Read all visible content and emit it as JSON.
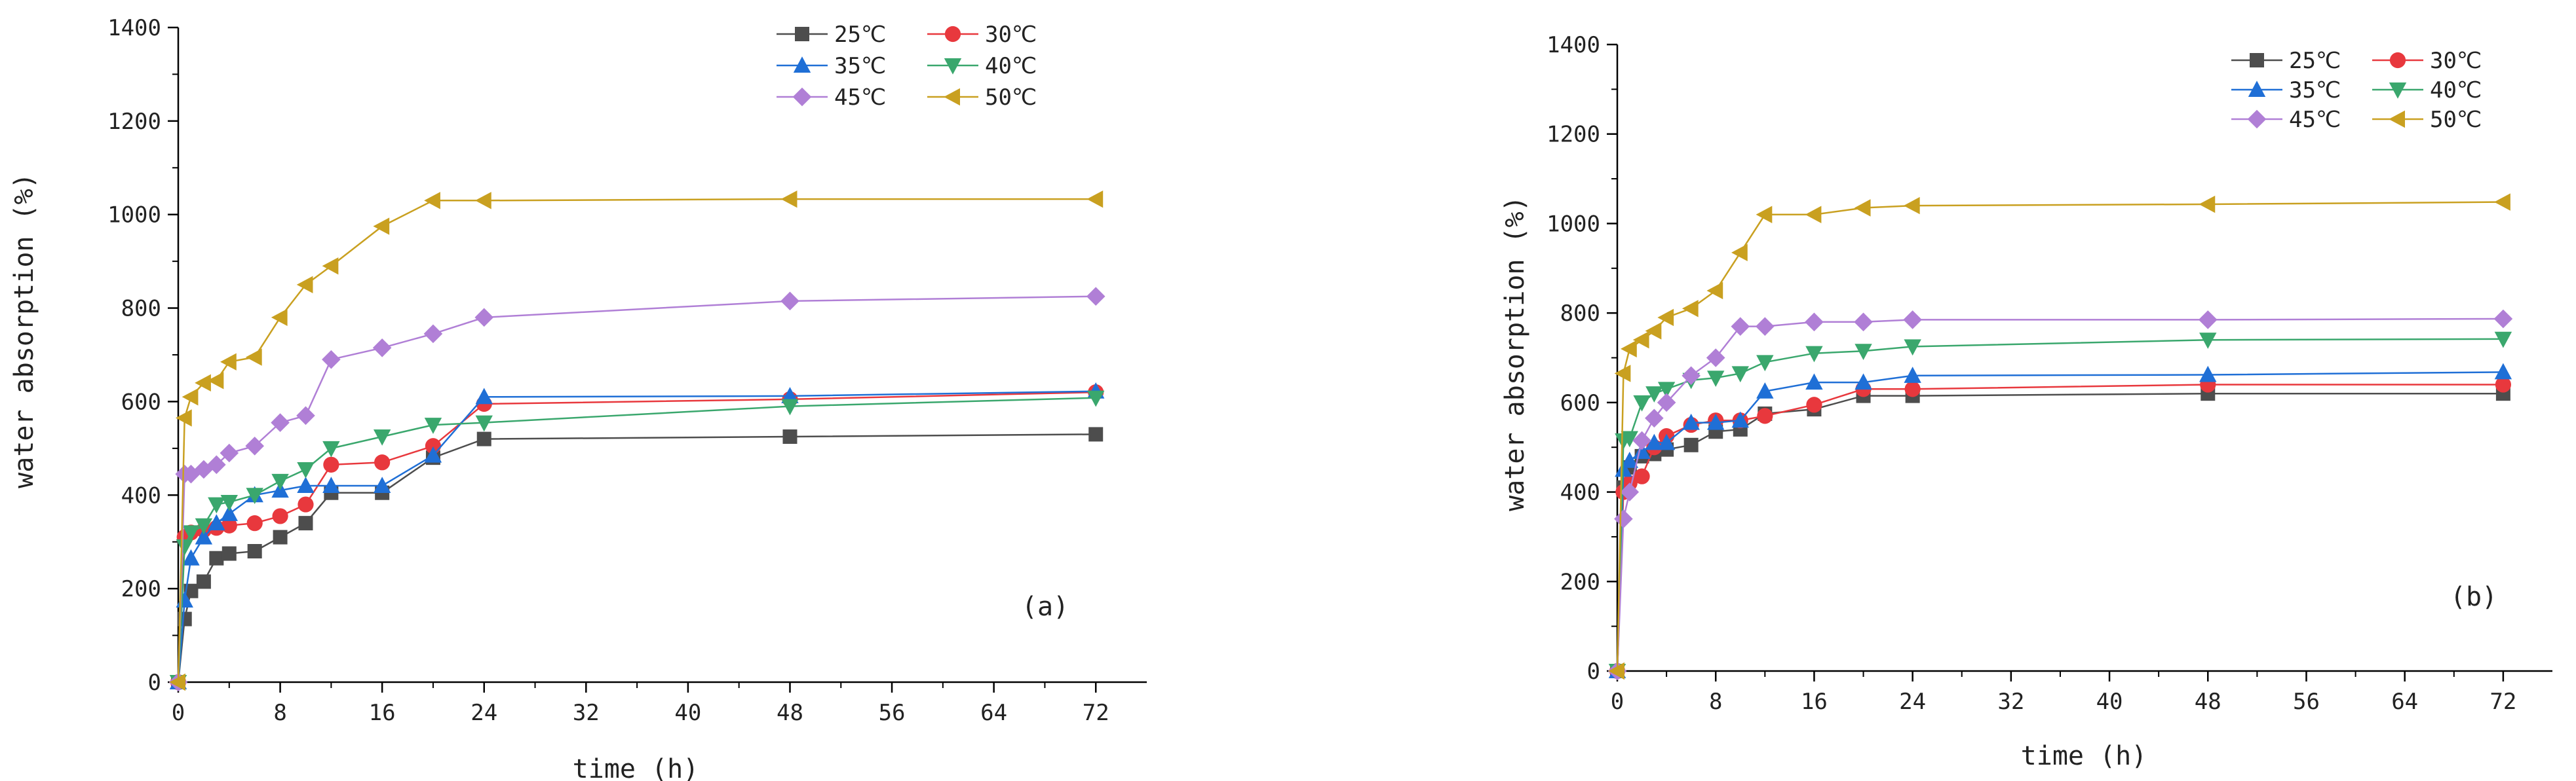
{
  "chart_data": [
    {
      "type": "line",
      "title": "",
      "panel_label": "(a)",
      "xlabel": "time (h)",
      "ylabel": "water absorption (%)",
      "xlim": [
        0,
        76
      ],
      "ylim": [
        0,
        1400
      ],
      "xticks": [
        "0",
        "8",
        "16",
        "24",
        "32",
        "40",
        "48",
        "56",
        "64",
        "72"
      ],
      "yticks": [
        "0",
        "200",
        "400",
        "600",
        "800",
        "1000",
        "1200",
        "1400"
      ],
      "legend_position": "top-right",
      "grid": false,
      "x": [
        0,
        0.5,
        1,
        2,
        3,
        4,
        6,
        8,
        10,
        12,
        16,
        20,
        24,
        48,
        72
      ],
      "series": [
        {
          "name": "25℃",
          "color": "#4d4d4d",
          "marker": "square",
          "values": [
            0,
            135,
            195,
            215,
            265,
            275,
            280,
            310,
            340,
            405,
            405,
            480,
            520,
            525,
            530
          ]
        },
        {
          "name": "30℃",
          "color": "#e8383d",
          "marker": "circle",
          "values": [
            0,
            310,
            320,
            325,
            330,
            335,
            340,
            355,
            380,
            465,
            470,
            505,
            595,
            605,
            620
          ]
        },
        {
          "name": "35℃",
          "color": "#1f6fd6",
          "marker": "triangle-up",
          "values": [
            0,
            175,
            265,
            310,
            340,
            360,
            400,
            410,
            420,
            420,
            420,
            485,
            610,
            612,
            622
          ]
        },
        {
          "name": "40℃",
          "color": "#3aa76d",
          "marker": "triangle-down",
          "values": [
            0,
            290,
            320,
            335,
            380,
            385,
            400,
            430,
            455,
            500,
            525,
            550,
            555,
            590,
            608
          ]
        },
        {
          "name": "45℃",
          "color": "#b07fd6",
          "marker": "diamond",
          "values": [
            0,
            445,
            445,
            455,
            465,
            490,
            505,
            555,
            570,
            690,
            715,
            745,
            780,
            815,
            825
          ]
        },
        {
          "name": "50℃",
          "color": "#c9a020",
          "marker": "triangle-left",
          "values": [
            0,
            565,
            610,
            640,
            645,
            685,
            695,
            780,
            850,
            890,
            975,
            1030,
            1030,
            1033,
            1033
          ]
        }
      ]
    },
    {
      "type": "line",
      "title": "",
      "panel_label": "(b)",
      "xlabel": "time (h)",
      "ylabel": "water absorption (%)",
      "xlim": [
        0,
        76
      ],
      "ylim": [
        0,
        1400
      ],
      "xticks": [
        "0",
        "8",
        "16",
        "24",
        "32",
        "40",
        "48",
        "56",
        "64",
        "72"
      ],
      "yticks": [
        "0",
        "200",
        "400",
        "600",
        "800",
        "1000",
        "1200",
        "1400"
      ],
      "legend_position": "top-right",
      "grid": false,
      "x": [
        0,
        0.5,
        1,
        2,
        3,
        4,
        6,
        8,
        10,
        12,
        16,
        20,
        24,
        48,
        72
      ],
      "series": [
        {
          "name": "25℃",
          "color": "#4d4d4d",
          "marker": "square",
          "values": [
            0,
            410,
            455,
            480,
            485,
            495,
            505,
            535,
            540,
            575,
            585,
            615,
            615,
            620,
            620
          ]
        },
        {
          "name": "30℃",
          "color": "#e8383d",
          "marker": "circle",
          "values": [
            0,
            400,
            420,
            435,
            500,
            525,
            550,
            560,
            560,
            570,
            595,
            630,
            630,
            640,
            640
          ]
        },
        {
          "name": "35℃",
          "color": "#1f6fd6",
          "marker": "triangle-up",
          "values": [
            0,
            450,
            470,
            490,
            510,
            510,
            555,
            555,
            560,
            625,
            645,
            645,
            660,
            662,
            668
          ]
        },
        {
          "name": "40℃",
          "color": "#3aa76d",
          "marker": "triangle-down",
          "values": [
            0,
            515,
            520,
            600,
            620,
            630,
            650,
            655,
            665,
            690,
            710,
            715,
            725,
            740,
            742
          ]
        },
        {
          "name": "45℃",
          "color": "#b07fd6",
          "marker": "diamond",
          "values": [
            0,
            340,
            400,
            515,
            565,
            600,
            660,
            700,
            770,
            770,
            780,
            780,
            785,
            785,
            787
          ]
        },
        {
          "name": "50℃",
          "color": "#c9a020",
          "marker": "triangle-left",
          "values": [
            0,
            665,
            720,
            740,
            760,
            790,
            810,
            850,
            935,
            1020,
            1020,
            1035,
            1040,
            1043,
            1048
          ]
        }
      ]
    }
  ]
}
